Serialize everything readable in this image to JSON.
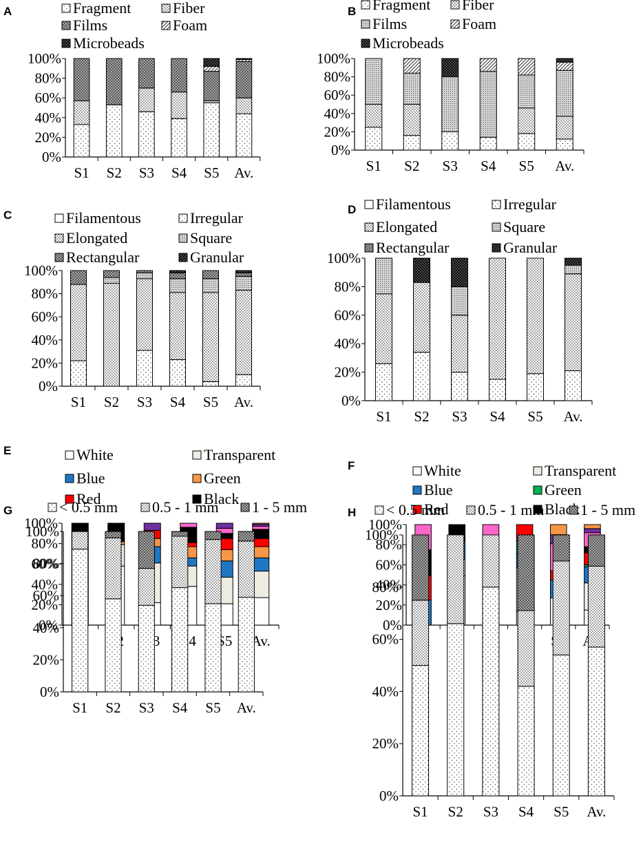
{
  "chart_data": [
    {
      "panel": "A",
      "type": "bar",
      "stacked": true,
      "categories": [
        "S1",
        "S2",
        "S3",
        "S4",
        "S5",
        "Av."
      ],
      "yticks": [
        "0%",
        "20%",
        "40%",
        "60%",
        "80%",
        "100%"
      ],
      "ylim": [
        0,
        100
      ],
      "series": [
        {
          "name": "Fragment",
          "pattern": "dots-sparse",
          "values": [
            33,
            53,
            46,
            39,
            55,
            44
          ]
        },
        {
          "name": "Fiber",
          "pattern": "dots-dense",
          "values": [
            24,
            0,
            24,
            27,
            2,
            16
          ]
        },
        {
          "name": "Films",
          "pattern": "cross",
          "values": [
            43,
            47,
            30,
            34,
            30,
            37
          ]
        },
        {
          "name": "Foam",
          "pattern": "diag",
          "values": [
            0,
            0,
            0,
            0,
            5,
            2
          ]
        },
        {
          "name": "Microbeads",
          "pattern": "black-check",
          "values": [
            0,
            0,
            0,
            0,
            8,
            1
          ]
        }
      ]
    },
    {
      "panel": "B",
      "type": "bar",
      "stacked": true,
      "categories": [
        "S1",
        "S2",
        "S3",
        "S4",
        "S5",
        "Av."
      ],
      "yticks": [
        "0%",
        "20%",
        "40%",
        "60%",
        "80%",
        "100%"
      ],
      "ylim": [
        0,
        100
      ],
      "series": [
        {
          "name": "Fragment",
          "pattern": "dots-sparse",
          "values": [
            25,
            16,
            20,
            14,
            18,
            12
          ]
        },
        {
          "name": "Fiber",
          "pattern": "dots-dense",
          "values": [
            25,
            34,
            0,
            0,
            28,
            25
          ]
        },
        {
          "name": "Films",
          "pattern": "dots-mid",
          "values": [
            50,
            34,
            60,
            72,
            36,
            50
          ]
        },
        {
          "name": "Foam",
          "pattern": "diag",
          "values": [
            0,
            16,
            0,
            14,
            18,
            9
          ]
        },
        {
          "name": "Microbeads",
          "pattern": "black-check",
          "values": [
            0,
            0,
            20,
            0,
            0,
            4
          ]
        }
      ]
    },
    {
      "panel": "C",
      "type": "bar",
      "stacked": true,
      "categories": [
        "S1",
        "S2",
        "S3",
        "S4",
        "S5",
        "Av."
      ],
      "yticks": [
        "0%",
        "20%",
        "40%",
        "60%",
        "80%",
        "100%"
      ],
      "ylim": [
        0,
        100
      ],
      "series": [
        {
          "name": "Filamentous",
          "pattern": "none",
          "values": [
            0,
            0,
            0,
            0,
            0,
            0
          ]
        },
        {
          "name": "Irregular",
          "pattern": "dots-sparse",
          "values": [
            22,
            0,
            31,
            23,
            4,
            10
          ]
        },
        {
          "name": "Elongated",
          "pattern": "dots-dense",
          "values": [
            66,
            89,
            62,
            58,
            77,
            73
          ]
        },
        {
          "name": "Square",
          "pattern": "dots-mid",
          "values": [
            0,
            5,
            5,
            12,
            12,
            12
          ]
        },
        {
          "name": "Rectangular",
          "pattern": "cross",
          "values": [
            12,
            6,
            2,
            5,
            7,
            3
          ]
        },
        {
          "name": "Granular",
          "pattern": "black-check",
          "values": [
            0,
            0,
            0,
            2,
            0,
            2
          ]
        }
      ]
    },
    {
      "panel": "D",
      "type": "bar",
      "stacked": true,
      "categories": [
        "S1",
        "S2",
        "S3",
        "S4",
        "S5",
        "Av."
      ],
      "yticks": [
        "0%",
        "20%",
        "40%",
        "60%",
        "80%",
        "100%"
      ],
      "ylim": [
        0,
        100
      ],
      "series": [
        {
          "name": "Filamentous",
          "pattern": "none",
          "values": [
            0,
            0,
            0,
            0,
            0,
            0
          ]
        },
        {
          "name": "Irregular",
          "pattern": "dots-sparse",
          "values": [
            26,
            34,
            20,
            15,
            19,
            21
          ]
        },
        {
          "name": "Elongated",
          "pattern": "dots-dense",
          "values": [
            49,
            49,
            40,
            85,
            81,
            68
          ]
        },
        {
          "name": "Square",
          "pattern": "dots-mid",
          "values": [
            25,
            0,
            20,
            0,
            0,
            6
          ]
        },
        {
          "name": "Rectangular",
          "pattern": "cross",
          "values": [
            0,
            0,
            0,
            0,
            0,
            0
          ]
        },
        {
          "name": "Granular",
          "pattern": "black-check",
          "values": [
            0,
            17,
            20,
            0,
            0,
            5
          ]
        }
      ]
    },
    {
      "panel": "E",
      "type": "bar",
      "stacked": true,
      "categories": [
        "S1",
        "S2",
        "S3",
        "S4",
        "S5",
        "Av."
      ],
      "yticks": [
        "0%",
        "20%",
        "40%",
        "60%",
        "80%",
        "100%"
      ],
      "ylim": [
        0,
        100
      ],
      "series": [
        {
          "name": "White",
          "color": "#ffffff",
          "values": [
            11,
            58,
            22,
            38,
            21,
            27
          ]
        },
        {
          "name": "Transparent",
          "color": "#eeece1",
          "values": [
            22,
            21,
            39,
            20,
            26,
            26
          ]
        },
        {
          "name": "Blue",
          "color": "#1f77c4",
          "values": [
            11,
            0,
            16,
            8,
            16,
            13
          ]
        },
        {
          "name": "Green",
          "color": "#f79646",
          "values": [
            33,
            3,
            8,
            11,
            11,
            11
          ]
        },
        {
          "name": "Red",
          "color": "#ff0000",
          "values": [
            11,
            0,
            8,
            4,
            11,
            8
          ]
        },
        {
          "name": "Black",
          "color": "#000000",
          "values": [
            12,
            18,
            0,
            15,
            5,
            9
          ]
        },
        {
          "name": "",
          "color": "#ff66cc",
          "values": [
            0,
            0,
            0,
            4,
            5,
            3
          ]
        },
        {
          "name": "",
          "color": "#7030a0",
          "values": [
            0,
            0,
            7,
            0,
            5,
            2
          ]
        },
        {
          "name": "",
          "color": "#f79646",
          "values": [
            0,
            0,
            0,
            0,
            0,
            1
          ]
        }
      ]
    },
    {
      "panel": "F",
      "type": "bar",
      "stacked": true,
      "categories": [
        "S1",
        "S2",
        "S3",
        "S4",
        "S5",
        "Av."
      ],
      "yticks": [
        "0%",
        "20%",
        "40%",
        "60%",
        "80%",
        "100%"
      ],
      "ylim": [
        0,
        100
      ],
      "series": [
        {
          "name": "White",
          "color": "#ffffff",
          "values": [
            0,
            49,
            20,
            14,
            0,
            15
          ]
        },
        {
          "name": "Transparent",
          "color": "#eeece1",
          "values": [
            0,
            17,
            40,
            43,
            27,
            27
          ]
        },
        {
          "name": "Blue",
          "color": "#1f77c4",
          "values": [
            25,
            17,
            0,
            14,
            18,
            16
          ]
        },
        {
          "name": "Green",
          "color": "#00b050",
          "values": [
            0,
            0,
            0,
            13,
            0,
            2
          ]
        },
        {
          "name": "Red",
          "color": "#ff0000",
          "values": [
            24,
            0,
            20,
            16,
            9,
            12
          ]
        },
        {
          "name": "Black",
          "color": "#000000",
          "values": [
            26,
            17,
            0,
            0,
            0,
            6
          ]
        },
        {
          "name": "",
          "color": "#ff66cc",
          "values": [
            25,
            0,
            20,
            0,
            27,
            14
          ]
        },
        {
          "name": "",
          "color": "#7030a0",
          "values": [
            0,
            0,
            0,
            0,
            9,
            4
          ]
        },
        {
          "name": "",
          "color": "#f79646",
          "values": [
            0,
            0,
            0,
            0,
            10,
            4
          ]
        }
      ]
    },
    {
      "panel": "G",
      "type": "bar",
      "stacked": true,
      "categories": [
        "S1",
        "S2",
        "S3",
        "S4",
        "S5",
        "Av."
      ],
      "yticks": [
        "0%",
        "20%",
        "40%",
        "60%",
        "80%",
        "100%"
      ],
      "ylim": [
        0,
        100
      ],
      "series": [
        {
          "name": "< 0.5 mm",
          "pattern": "dots-sparse",
          "values": [
            89,
            58,
            54,
            65,
            55,
            59
          ]
        },
        {
          "name": "0.5 - 1 mm",
          "pattern": "dots-dense",
          "values": [
            11,
            38,
            23,
            32,
            40,
            35
          ]
        },
        {
          "name": "1 - 5 mm",
          "pattern": "cross",
          "values": [
            0,
            4,
            23,
            3,
            5,
            6
          ]
        }
      ]
    },
    {
      "panel": "H",
      "type": "bar",
      "stacked": true,
      "categories": [
        "S1",
        "S2",
        "S3",
        "S4",
        "S5",
        "Av."
      ],
      "yticks": [
        "0%",
        "20%",
        "40%",
        "60%",
        "80%",
        "100%"
      ],
      "ylim": [
        0,
        100
      ],
      "series": [
        {
          "name": "< 0.5 mm",
          "pattern": "dots-sparse",
          "values": [
            50,
            66,
            80,
            42,
            54,
            57
          ]
        },
        {
          "name": "0.5 - 1 mm",
          "pattern": "dots-dense",
          "values": [
            25,
            34,
            20,
            29,
            36,
            31
          ]
        },
        {
          "name": "1 - 5 mm",
          "pattern": "cross",
          "values": [
            25,
            0,
            0,
            29,
            10,
            12
          ]
        }
      ]
    }
  ]
}
